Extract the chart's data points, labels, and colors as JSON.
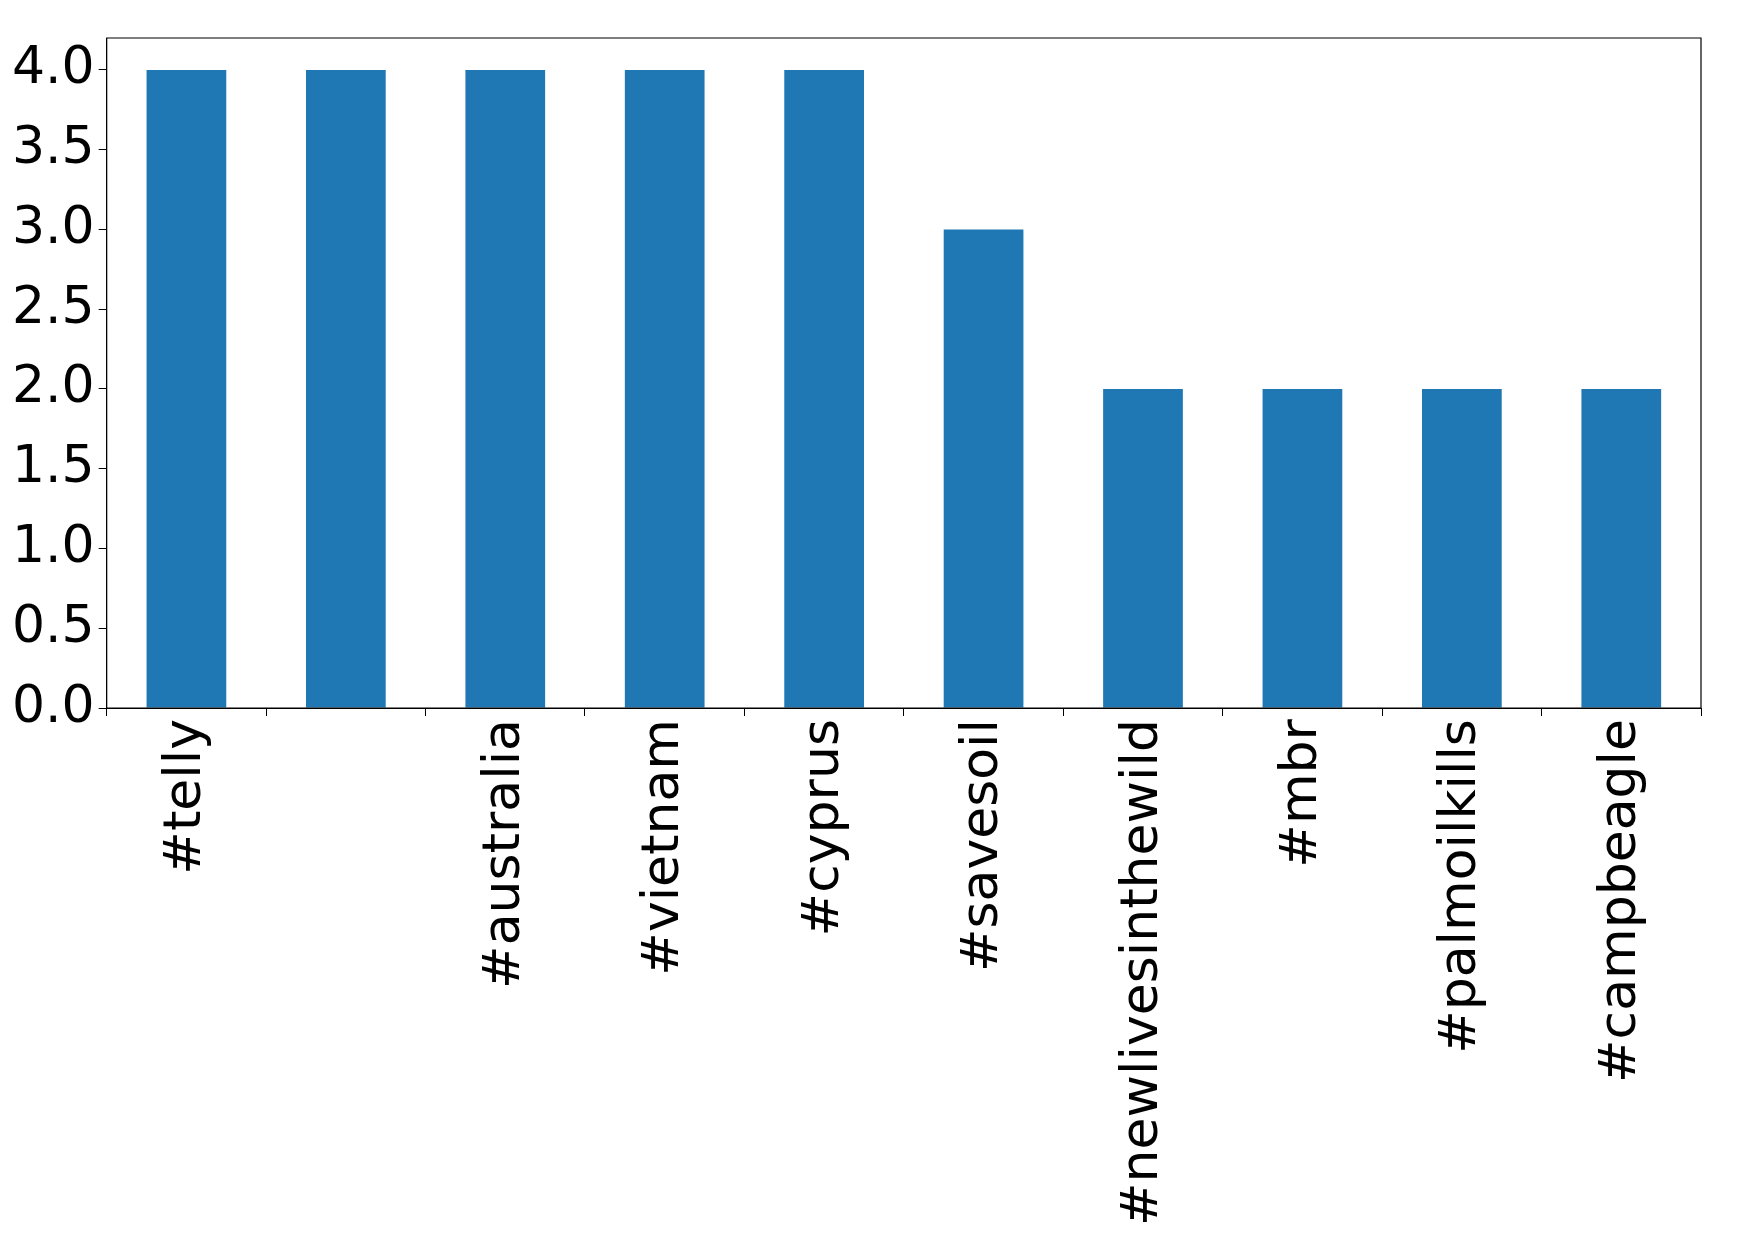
{
  "chart_data": {
    "type": "bar",
    "categories": [
      "#telly",
      null,
      "#australia",
      "#vietnam",
      "#cyprus",
      "#savesoil",
      "#newlivesinthewild",
      "#mbr",
      "#palmoilkills",
      "#campbeagle"
    ],
    "values": [
      4,
      4,
      4,
      4,
      4,
      3,
      2,
      2,
      2,
      2
    ],
    "color": "#1f77b4",
    "ylim": [
      0,
      4.2
    ],
    "yticks": [
      {
        "value": 0,
        "label": "0.0"
      },
      {
        "value": 0.5,
        "label": "0.5"
      },
      {
        "value": 1,
        "label": "1.0"
      },
      {
        "value": 1.5,
        "label": "1.5"
      },
      {
        "value": 2,
        "label": "2.0"
      },
      {
        "value": 2.5,
        "label": "2.5"
      },
      {
        "value": 3,
        "label": "3.0"
      },
      {
        "value": 3.5,
        "label": "3.5"
      },
      {
        "value": 4,
        "label": "4.0"
      }
    ],
    "grid": false,
    "legend": false
  }
}
